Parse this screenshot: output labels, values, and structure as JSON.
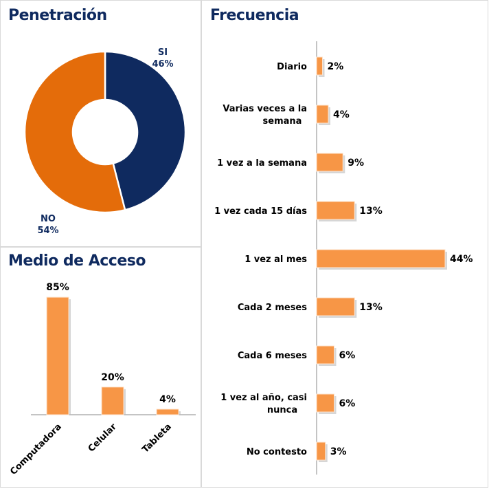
{
  "chart_data": [
    {
      "type": "pie",
      "title": "Penetración",
      "donut": true,
      "slices": [
        {
          "label": "SI",
          "value": 46,
          "display": "46%",
          "color": "#0f2a5f"
        },
        {
          "label": "NO",
          "value": 54,
          "display": "54%",
          "color": "#e46c0a"
        }
      ]
    },
    {
      "type": "bar",
      "title": "Medio de Acceso",
      "orientation": "vertical",
      "categories": [
        "Computadora",
        "Celular",
        "Tableta"
      ],
      "values": [
        85,
        20,
        4
      ],
      "labels": [
        "85%",
        "20%",
        "4%"
      ],
      "color": "#f79646"
    },
    {
      "type": "bar",
      "title": "Frecuencia",
      "orientation": "horizontal",
      "categories": [
        "Diario",
        "Varias veces a la semana",
        "1 vez a la semana",
        "1 vez cada 15 días",
        "1 vez al mes",
        "Cada 2 meses",
        "Cada 6 meses",
        "1 vez al año, casi nunca",
        "No contesto"
      ],
      "values": [
        2,
        4,
        9,
        13,
        44,
        13,
        6,
        6,
        3
      ],
      "labels": [
        "2%",
        "4%",
        "9%",
        "13%",
        "44%",
        "13%",
        "6%",
        "6%",
        "3%"
      ],
      "color": "#f79646"
    }
  ]
}
